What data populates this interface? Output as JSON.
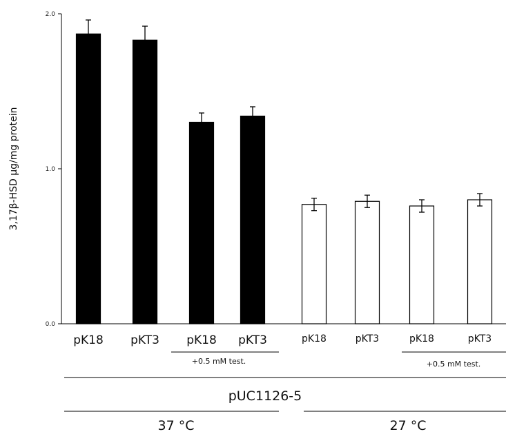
{
  "chart_data": {
    "type": "bar",
    "xlabel": "",
    "ylabel": "3,17β-HSD µg/mg protein",
    "ylim": [
      0,
      2.0
    ],
    "yticks": [
      "0.0",
      "1.0",
      "2.0"
    ],
    "categories": [
      "pK18",
      "pKT3",
      "pK18",
      "pKT3",
      "pK18",
      "pKT3",
      "pK18",
      "pKT3"
    ],
    "values": [
      1.87,
      1.83,
      1.3,
      1.34,
      0.77,
      0.79,
      0.76,
      0.8
    ],
    "errors": [
      0.09,
      0.09,
      0.06,
      0.06,
      0.04,
      0.04,
      0.04,
      0.04
    ],
    "fills": [
      "#000000",
      "#000000",
      "#000000",
      "#000000",
      "#ffffff",
      "#ffffff",
      "#ffffff",
      "#ffffff"
    ],
    "group_notes": [
      "+0.5 mM test.",
      "+0.5 mM test."
    ],
    "plasmid": "pUC1126-5",
    "temperatures": [
      "37 °C",
      "27 °C"
    ],
    "grid": false
  }
}
